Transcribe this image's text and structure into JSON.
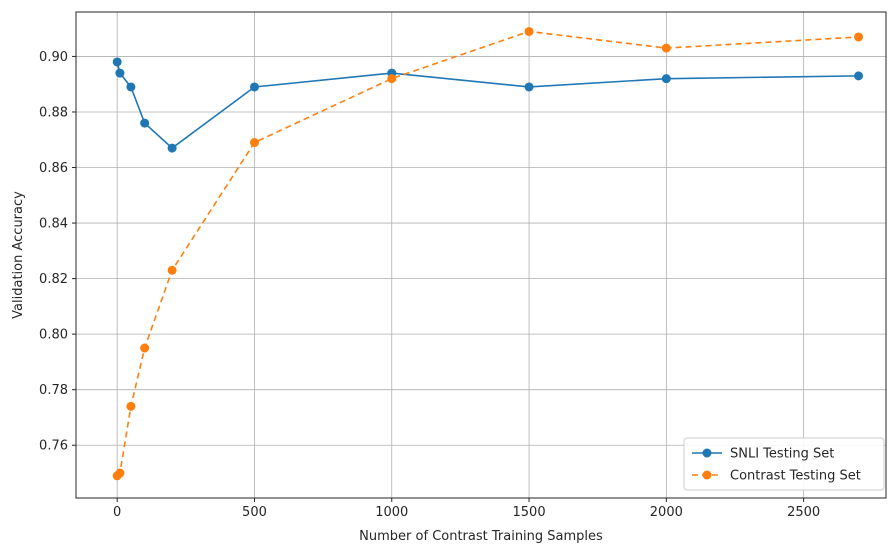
{
  "chart_data": {
    "type": "line",
    "title": "",
    "xlabel": "Number of Contrast Training Samples",
    "ylabel": "Validation Accuracy",
    "xlim": [
      -150,
      2800
    ],
    "ylim": [
      0.741,
      0.916
    ],
    "xticks": [
      0,
      500,
      1000,
      1500,
      2000,
      2500
    ],
    "yticks": [
      0.76,
      0.78,
      0.8,
      0.82,
      0.84,
      0.86,
      0.88,
      0.9
    ],
    "xtick_labels": [
      "0",
      "500",
      "1000",
      "1500",
      "2000",
      "2500"
    ],
    "ytick_labels": [
      "0.76",
      "0.78",
      "0.80",
      "0.82",
      "0.84",
      "0.86",
      "0.88",
      "0.90"
    ],
    "grid": true,
    "legend_position": "bottom-right",
    "series": [
      {
        "name": "SNLI Testing Set",
        "color": "#1f77b4",
        "line_style": "solid",
        "marker": "circle",
        "x": [
          0,
          10,
          50,
          100,
          200,
          500,
          1000,
          1500,
          2000,
          2700
        ],
        "y": [
          0.898,
          0.894,
          0.889,
          0.876,
          0.867,
          0.889,
          0.894,
          0.889,
          0.892,
          0.893
        ]
      },
      {
        "name": "Contrast Testing Set",
        "color": "#ff7f0e",
        "line_style": "dashed",
        "marker": "circle",
        "x": [
          0,
          10,
          50,
          100,
          200,
          500,
          1000,
          1500,
          2000,
          2700
        ],
        "y": [
          0.749,
          0.75,
          0.774,
          0.795,
          0.823,
          0.869,
          0.892,
          0.909,
          0.903,
          0.907
        ]
      }
    ]
  }
}
